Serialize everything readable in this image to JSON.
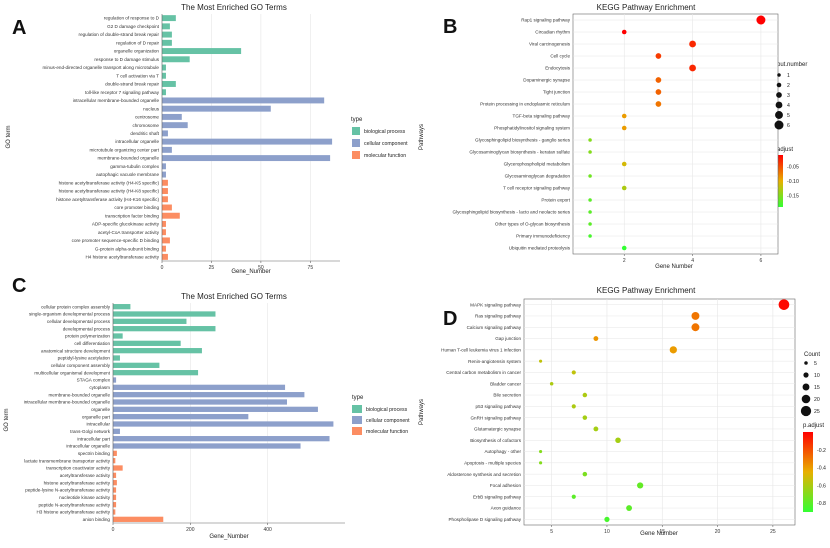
{
  "colors": {
    "biological_process": "#66C2A5",
    "cellular_component": "#8DA0CB",
    "molecular_function": "#FC8D62",
    "grid": "#E6E6E6",
    "axis": "#666666",
    "gradient_high": "#FF0000",
    "gradient_low": "#33FF33"
  },
  "chart_data": [
    {
      "panel": "A",
      "type": "bar",
      "orientation": "horizontal",
      "title": "The Most Enriched GO Terms",
      "xlabel": "Gene_Number",
      "ylabel": "GO term",
      "xlim": [
        0,
        90
      ],
      "xticks": [
        0,
        25,
        50,
        75
      ],
      "legend_title": "type",
      "legend": [
        "biological process",
        "cellular component",
        "molecular function"
      ],
      "categories": [
        "regulation of response to D",
        "G2 D damage checkpoint",
        "regulation of double-strand break repair",
        "regulation of D repair",
        "organelle organization",
        "response to D damage stimulus",
        "minus-end-directed organelle transport along microtubule",
        "T cell activation via T",
        "double-strand break repair",
        "toll-like receptor 7 signaling pathway",
        "intracellular membrane-bounded organelle",
        "nucleus",
        "centrosome",
        "chromosome",
        "dendritic shaft",
        "intracellular organelle",
        "microtubule organizing center part",
        "membrane-bounded organelle",
        "gamma-tubulin complex",
        "autophagic vacuole membrane",
        "histone acetyltransferase activity (H4-K5 specific)",
        "histone acetyltransferase activity (H4-K8 specific)",
        "histone acetyltransferase activity (H4-K16 specific)",
        "core promoter binding",
        "transcription factor binding",
        "ADP-specific glucokinase activity",
        "acetyl-CoA transporter activity",
        "core promoter sequence-specific D binding",
        "G-protein alpha-subunit binding",
        "H4 histone acetyltransferase activity"
      ],
      "values": [
        7,
        4,
        5,
        5,
        40,
        14,
        2,
        2,
        7,
        2,
        82,
        55,
        10,
        13,
        3,
        86,
        5,
        85,
        2,
        2,
        3,
        3,
        3,
        5,
        9,
        2,
        2,
        4,
        2,
        3
      ],
      "groups": [
        0,
        0,
        0,
        0,
        0,
        0,
        0,
        0,
        0,
        0,
        1,
        1,
        1,
        1,
        1,
        1,
        1,
        1,
        1,
        1,
        2,
        2,
        2,
        2,
        2,
        2,
        2,
        2,
        2,
        2
      ]
    },
    {
      "panel": "B",
      "type": "scatter",
      "title": "KEGG Pathway Enrichment",
      "xlabel": "Gene Number",
      "ylabel": "Pathways",
      "xlim": [
        0.5,
        6.5
      ],
      "xticks": [
        2,
        4,
        6
      ],
      "size_legend_title": "Input.number",
      "size_legend": [
        1,
        2,
        3,
        4,
        5,
        6
      ],
      "color_legend_title": "p.adjust",
      "color_legend": [
        "-0.05",
        "-0.10",
        "-0.15"
      ],
      "color_range": [
        -0.19,
        -0.01
      ],
      "categories": [
        "Rap1 signaling pathway",
        "Circadian rhythm",
        "Viral carcinogenesis",
        "Cell cycle",
        "Endocytosis",
        "Dopaminergic synapse",
        "Tight junction",
        "Protein processing in endoplasmic reticulum",
        "TGF-beta signaling pathway",
        "Phosphatidylinositol signaling system",
        "Glycosphingolipid biosynthesis - ganglio series",
        "Glycosaminoglycan biosynthesis - keratan sulfate",
        "Glycerophospholipid metabolism",
        "Glycosaminoglycan degradation",
        "T cell receptor signaling pathway",
        "Protein export",
        "Glycosphingolipid biosynthesis - lacto and neolacto series",
        "Other types of O-glycan biosynthesis",
        "Primary immunodeficiency",
        "Ubiquitin mediated proteolysis"
      ],
      "x": [
        6,
        2,
        4,
        3,
        4,
        3,
        3,
        3,
        2,
        2,
        1,
        1,
        2,
        1,
        2,
        1,
        1,
        1,
        1,
        2
      ],
      "p": [
        -0.01,
        -0.01,
        -0.03,
        -0.04,
        -0.03,
        -0.06,
        -0.06,
        -0.07,
        -0.09,
        -0.09,
        -0.15,
        -0.15,
        -0.11,
        -0.16,
        -0.13,
        -0.17,
        -0.17,
        -0.17,
        -0.18,
        -0.19
      ]
    },
    {
      "panel": "C",
      "type": "bar",
      "orientation": "horizontal",
      "title": "The Most Enriched GO Terms",
      "xlabel": "Gene_Number",
      "ylabel": "GO term",
      "xlim": [
        0,
        600
      ],
      "xticks": [
        0,
        200,
        400
      ],
      "legend_title": "type",
      "legend": [
        "biological process",
        "cellular component",
        "molecular function"
      ],
      "categories": [
        "cellular protein complex assembly",
        "single-organism developmental process",
        "cellular developmental process",
        "developmental process",
        "protein polymerization",
        "cell differentiation",
        "anatomical structure development",
        "peptidyl-lysine acetylation",
        "cellular component assembly",
        "multicellular organismal development",
        "STAGA complex",
        "cytoplasm",
        "membrane-bounded organelle",
        "intracellular membrane-bounded organelle",
        "organelle",
        "organelle part",
        "intracellular",
        "trans-Golgi network",
        "intracellular part",
        "intracellular organelle",
        "spectrin binding",
        "lactate transmembrane transporter activity",
        "transcription coactivator activity",
        "acetyltransferase activity",
        "histone acetyltransferase activity",
        "peptide-lysine N-acetyltransferase activity",
        "nucleotide kinase activity",
        "peptide N-acetyltransferase activity",
        "H3 histone acetyltransferase activity",
        "anion binding"
      ],
      "values": [
        45,
        265,
        190,
        265,
        25,
        175,
        230,
        18,
        120,
        220,
        8,
        445,
        495,
        450,
        530,
        350,
        570,
        18,
        560,
        485,
        10,
        6,
        25,
        8,
        10,
        8,
        8,
        8,
        6,
        130
      ],
      "groups": [
        0,
        0,
        0,
        0,
        0,
        0,
        0,
        0,
        0,
        0,
        1,
        1,
        1,
        1,
        1,
        1,
        1,
        1,
        1,
        1,
        2,
        2,
        2,
        2,
        2,
        2,
        2,
        2,
        2,
        2
      ]
    },
    {
      "panel": "D",
      "type": "scatter",
      "title": "KEGG Pathway Enrichment",
      "xlabel": "Gene Number",
      "ylabel": "Pathways",
      "xlim": [
        2.5,
        27
      ],
      "xticks": [
        5,
        10,
        15,
        20,
        25
      ],
      "size_legend_title": "Count",
      "size_legend": [
        5,
        10,
        15,
        20,
        25
      ],
      "color_legend_title": "p.adjust",
      "color_legend": [
        "-0.2",
        "-0.4",
        "-0.6",
        "-0.8"
      ],
      "color_range": [
        -0.9,
        0.0
      ],
      "categories": [
        "MAPK signaling pathway",
        "Ras signaling pathway",
        "Calcium signaling pathway",
        "Gap junction",
        "Human T-cell leukemia virus 1 infection",
        "Renin-angiotensin system",
        "Central carbon metabolism in cancer",
        "Bladder cancer",
        "Bile secretion",
        "p53 signaling pathway",
        "GnRH signaling pathway",
        "Glutamatergic synapse",
        "Biosynthesis of cofactors",
        "Autophagy - other",
        "Apoptosis - multiple species",
        "Aldosterone synthesis and secretion",
        "Focal adhesion",
        "ErbB signaling pathway",
        "Axon guidance",
        "Phospholipase D signaling pathway"
      ],
      "x": [
        26,
        18,
        18,
        9,
        16,
        4,
        7,
        5,
        8,
        7,
        8,
        9,
        11,
        4,
        4,
        8,
        13,
        7,
        12,
        10
      ],
      "p": [
        -0.02,
        -0.3,
        -0.3,
        -0.38,
        -0.4,
        -0.55,
        -0.55,
        -0.6,
        -0.6,
        -0.6,
        -0.62,
        -0.62,
        -0.62,
        -0.7,
        -0.7,
        -0.72,
        -0.78,
        -0.8,
        -0.8,
        -0.85
      ]
    }
  ]
}
